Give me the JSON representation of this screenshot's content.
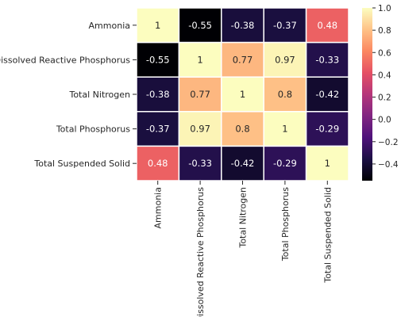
{
  "chart_data": {
    "type": "heatmap",
    "title": "",
    "xlabel": "",
    "ylabel": "",
    "colormap": "magma",
    "vmin": -0.55,
    "vmax": 1.0,
    "row_labels": [
      "Ammonia",
      "Dissolved Reactive Phosphorus",
      "Total Nitrogen",
      "Total Phosphorus",
      "Total Suspended Solid"
    ],
    "col_labels": [
      "Ammonia",
      "Dissolved Reactive Phosphorus",
      "Total Nitrogen",
      "Total Phosphorus",
      "Total Suspended Solid"
    ],
    "values": [
      [
        1,
        -0.55,
        -0.38,
        -0.37,
        0.48
      ],
      [
        -0.55,
        1,
        0.77,
        0.97,
        -0.33
      ],
      [
        -0.38,
        0.77,
        1,
        0.8,
        -0.42
      ],
      [
        -0.37,
        0.97,
        0.8,
        1,
        -0.29
      ],
      [
        0.48,
        -0.33,
        -0.42,
        -0.29,
        1
      ]
    ],
    "cell_labels": [
      [
        "1",
        "-0.55",
        "-0.38",
        "-0.37",
        "0.48"
      ],
      [
        "-0.55",
        "1",
        "0.77",
        "0.97",
        "-0.33"
      ],
      [
        "-0.38",
        "0.77",
        "1",
        "0.8",
        "-0.42"
      ],
      [
        "-0.37",
        "0.97",
        "0.8",
        "1",
        "-0.29"
      ],
      [
        "0.48",
        "-0.33",
        "-0.42",
        "-0.29",
        "1"
      ]
    ],
    "colorbar": {
      "ticks": [
        1.0,
        0.8,
        0.6,
        0.4,
        0.2,
        0.0,
        -0.2,
        -0.4
      ],
      "tick_labels": [
        "1.0",
        "0.8",
        "0.6",
        "0.4",
        "0.2",
        "0.0",
        "−0.2",
        "−0.4"
      ]
    },
    "grid_line_color": "#ffffff"
  }
}
